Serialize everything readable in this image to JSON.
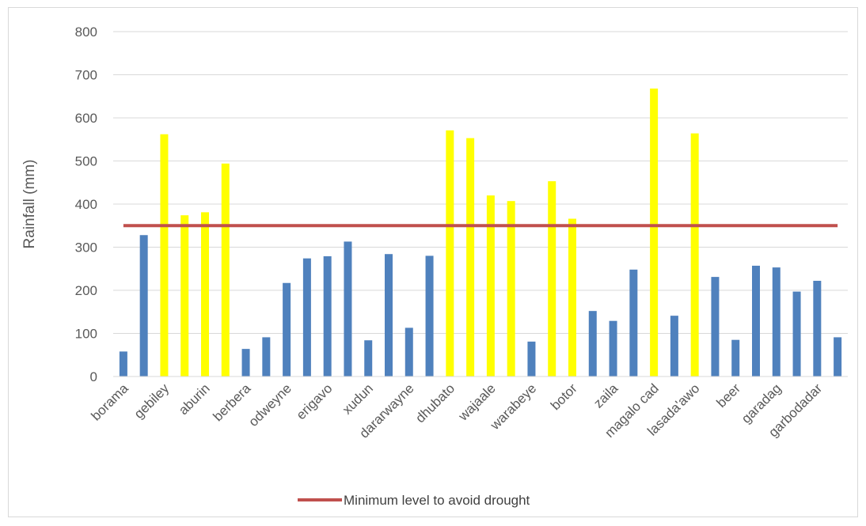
{
  "chart_data": {
    "type": "bar",
    "ylabel": "Rainfall (mm)",
    "ylim": [
      0,
      800
    ],
    "yticks": [
      0,
      100,
      200,
      300,
      400,
      500,
      600,
      700,
      800
    ],
    "grid": true,
    "legend_position": "bottom",
    "categories": [
      "borama",
      "",
      "gebiley",
      "",
      "aburin",
      "",
      "berbera",
      "",
      "odweyne",
      "",
      "erigavo",
      "",
      "xudun",
      "",
      "dararwayne",
      "",
      "dhubato",
      "",
      "wajaale",
      "",
      "warabeye",
      "",
      "botor",
      "",
      "zaila",
      "",
      "magalo cad",
      "",
      "lasada'awo",
      "",
      "beer",
      "",
      "garadag",
      "",
      "garbodadar",
      ""
    ],
    "values": [
      58,
      328,
      562,
      374,
      381,
      494,
      64,
      91,
      217,
      274,
      279,
      313,
      84,
      284,
      113,
      280,
      571,
      553,
      420,
      407,
      81,
      453,
      366,
      152,
      129,
      248,
      668,
      141,
      564,
      231,
      85,
      257,
      253,
      197,
      222,
      91
    ],
    "x_labels": [
      "borama",
      "gebiley",
      "aburin",
      "berbera",
      "odweyne",
      "erigavo",
      "xudun",
      "dararwayne",
      "dhubato",
      "wajaale",
      "warabeye",
      "botor",
      "zaila",
      "magalo cad",
      "lasada'awo",
      "beer",
      "garadag",
      "garbodadar"
    ],
    "threshold": {
      "name": "Minimum level to avoid drought",
      "value": 350
    },
    "colors": {
      "below": "#4f81bd",
      "above": "#ffff00",
      "threshold": "#c0504d",
      "grid": "#d9d9d9"
    }
  }
}
